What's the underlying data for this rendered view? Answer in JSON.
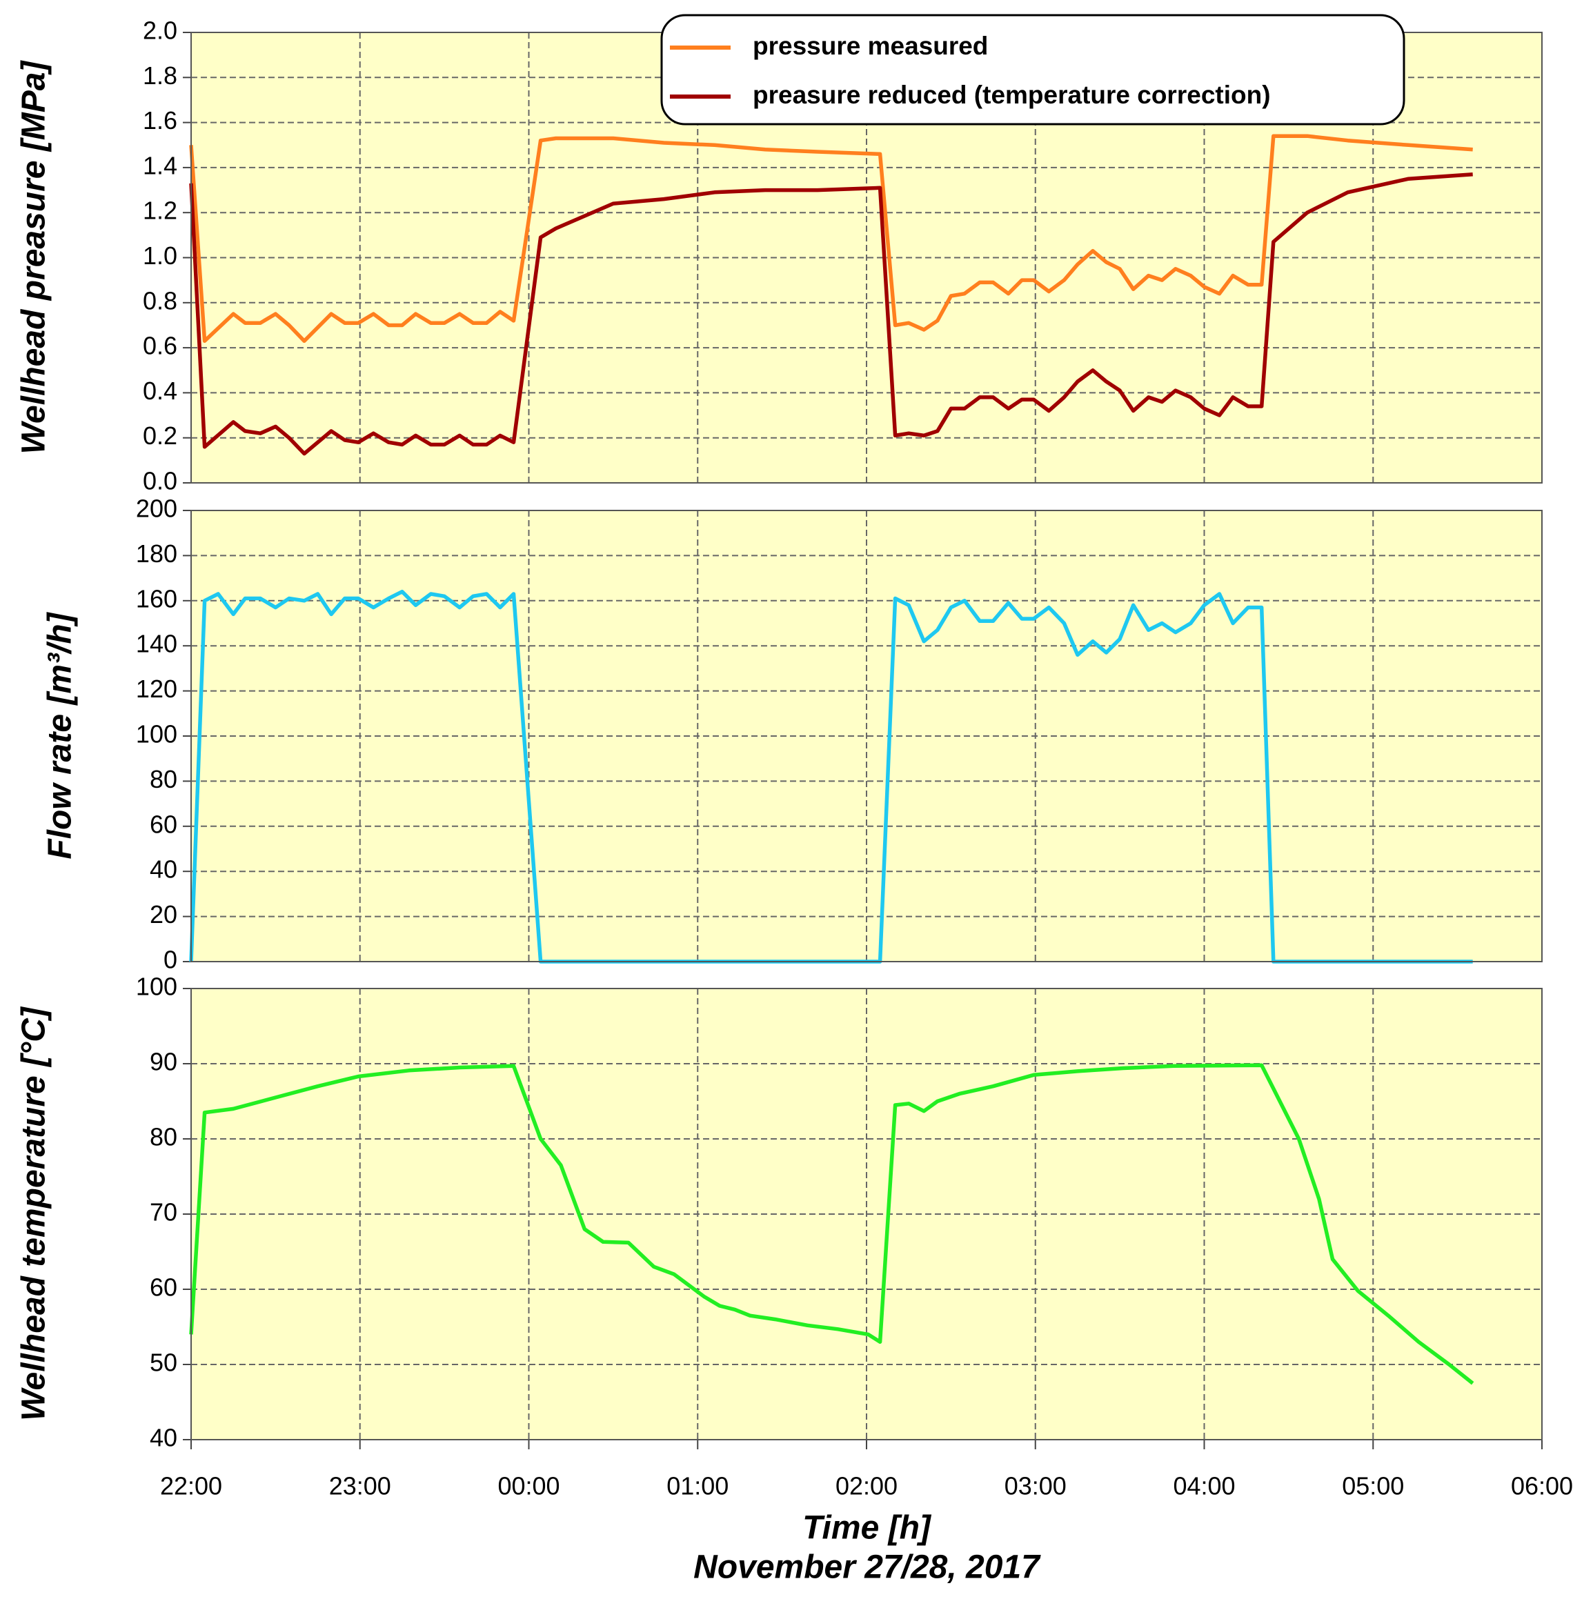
{
  "chart_data": [
    {
      "type": "line",
      "ylabel": "Wellhead preasure [MPa]",
      "legend": "top-right",
      "grid": true,
      "xlim": [
        22,
        30
      ],
      "ylim": [
        0,
        2
      ],
      "yticks": [
        {
          "value": 0,
          "label": "0.0"
        },
        0.2,
        0.4,
        0.6,
        0.8,
        {
          "value": 1,
          "label": "1.0"
        },
        1.2,
        1.4,
        1.6,
        1.8,
        {
          "value": 2,
          "label": "2.0"
        }
      ],
      "x": [
        22.0,
        22.08,
        22.25,
        22.32,
        22.41,
        22.5,
        22.58,
        22.67,
        22.83,
        22.91,
        22.99,
        23.08,
        23.17,
        23.25,
        23.33,
        23.42,
        23.5,
        23.59,
        23.67,
        23.75,
        23.83,
        23.91,
        24.07,
        24.16,
        24.5,
        24.8,
        25.1,
        25.4,
        25.71,
        26.08,
        26.17,
        26.25,
        26.34,
        26.42,
        26.5,
        26.58,
        26.67,
        26.75,
        26.84,
        26.92,
        26.99,
        27.08,
        27.17,
        27.25,
        27.34,
        27.42,
        27.5,
        27.58,
        27.67,
        27.75,
        27.83,
        27.92,
        28.0,
        28.09,
        28.17,
        28.26,
        28.34,
        28.41,
        28.61,
        28.85,
        29.21,
        29.59
      ],
      "series": [
        {
          "name": "pressure measured",
          "color": "#ff7f1e",
          "values": [
            1.5,
            0.63,
            0.75,
            0.71,
            0.71,
            0.75,
            0.7,
            0.63,
            0.75,
            0.71,
            0.71,
            0.75,
            0.7,
            0.7,
            0.75,
            0.71,
            0.71,
            0.75,
            0.71,
            0.71,
            0.76,
            0.72,
            1.52,
            1.53,
            1.53,
            1.51,
            1.5,
            1.48,
            1.47,
            1.46,
            0.7,
            0.71,
            0.68,
            0.72,
            0.83,
            0.84,
            0.89,
            0.89,
            0.84,
            0.9,
            0.9,
            0.85,
            0.9,
            0.97,
            1.03,
            0.98,
            0.95,
            0.86,
            0.92,
            0.9,
            0.95,
            0.92,
            0.87,
            0.84,
            0.92,
            0.88,
            0.88,
            1.54,
            1.54,
            1.52,
            1.5,
            1.48
          ]
        },
        {
          "name": "preasure reduced (temperature correction)",
          "color": "#a00000",
          "values": [
            1.33,
            0.16,
            0.27,
            0.23,
            0.22,
            0.25,
            0.2,
            0.13,
            0.23,
            0.19,
            0.18,
            0.22,
            0.18,
            0.17,
            0.21,
            0.17,
            0.17,
            0.21,
            0.17,
            0.17,
            0.21,
            0.18,
            1.09,
            1.13,
            1.24,
            1.26,
            1.29,
            1.3,
            1.3,
            1.31,
            0.21,
            0.22,
            0.21,
            0.23,
            0.33,
            0.33,
            0.38,
            0.38,
            0.33,
            0.37,
            0.37,
            0.32,
            0.38,
            0.45,
            0.5,
            0.45,
            0.41,
            0.32,
            0.38,
            0.36,
            0.41,
            0.38,
            0.33,
            0.3,
            0.38,
            0.34,
            0.34,
            1.07,
            1.2,
            1.29,
            1.35,
            1.37
          ]
        }
      ]
    },
    {
      "type": "line",
      "ylabel": "Flow rate [m³/h]",
      "grid": true,
      "xlim": [
        22,
        30
      ],
      "ylim": [
        0,
        200
      ],
      "yticks": [
        0,
        20,
        40,
        60,
        80,
        100,
        120,
        140,
        160,
        180,
        200
      ],
      "x": [
        22.0,
        22.08,
        22.16,
        22.25,
        22.32,
        22.41,
        22.5,
        22.58,
        22.67,
        22.75,
        22.83,
        22.91,
        22.99,
        23.08,
        23.17,
        23.25,
        23.33,
        23.42,
        23.5,
        23.59,
        23.67,
        23.75,
        23.83,
        23.91,
        24.07,
        26.08,
        26.17,
        26.25,
        26.34,
        26.42,
        26.5,
        26.58,
        26.67,
        26.75,
        26.84,
        26.92,
        26.99,
        27.08,
        27.17,
        27.25,
        27.34,
        27.42,
        27.5,
        27.58,
        27.67,
        27.75,
        27.83,
        27.92,
        28.0,
        28.09,
        28.17,
        28.26,
        28.34,
        28.41,
        29.59
      ],
      "series": [
        {
          "name": "flow rate",
          "color": "#1ec8f0",
          "values": [
            0,
            160,
            163,
            154,
            161,
            161,
            157,
            161,
            160,
            163,
            154,
            161,
            161,
            157,
            161,
            164,
            158,
            163,
            162,
            157,
            162,
            163,
            157,
            163,
            0,
            0,
            161,
            158,
            142,
            147,
            157,
            160,
            151,
            151,
            159,
            152,
            152,
            157,
            150,
            136,
            142,
            137,
            143,
            158,
            147,
            150,
            146,
            150,
            158,
            163,
            150,
            157,
            157,
            0,
            0
          ]
        }
      ]
    },
    {
      "type": "line",
      "ylabel": "Wellhead temperature [°C]",
      "xlabel": "Time [h]",
      "date": "November 27/28, 2017",
      "grid": true,
      "xlim": [
        22,
        30
      ],
      "ylim": [
        40,
        100
      ],
      "xticks": [
        {
          "value": 22,
          "label": "22:00"
        },
        {
          "value": 23,
          "label": "23:00"
        },
        {
          "value": 24,
          "label": "00:00"
        },
        {
          "value": 25,
          "label": "01:00"
        },
        {
          "value": 26,
          "label": "02:00"
        },
        {
          "value": 27,
          "label": "03:00"
        },
        {
          "value": 28,
          "label": "04:00"
        },
        {
          "value": 29,
          "label": "05:00"
        },
        {
          "value": 30,
          "label": "06:00"
        }
      ],
      "yticks": [
        40,
        50,
        60,
        70,
        80,
        90,
        100
      ],
      "x": [
        22.0,
        22.08,
        22.25,
        22.5,
        22.75,
        22.99,
        23.29,
        23.59,
        23.91,
        24.07,
        24.19,
        24.33,
        24.44,
        24.59,
        24.74,
        24.86,
        25.04,
        25.13,
        25.22,
        25.31,
        25.46,
        25.65,
        25.83,
        26.01,
        26.08,
        26.17,
        26.25,
        26.34,
        26.42,
        26.55,
        26.75,
        26.99,
        27.25,
        27.52,
        27.82,
        28.34,
        28.56,
        28.68,
        28.76,
        28.91,
        29.09,
        29.27,
        29.45,
        29.59
      ],
      "series": [
        {
          "name": "wellhead temperature",
          "color": "#22ee22",
          "values": [
            54,
            83.5,
            84,
            85.5,
            87,
            88.3,
            89.1,
            89.5,
            89.7,
            80,
            76.5,
            68,
            66.3,
            66.2,
            63,
            62,
            59,
            57.8,
            57.3,
            56.5,
            56,
            55.2,
            54.7,
            54.0,
            53,
            84.5,
            84.7,
            83.7,
            85,
            86,
            87,
            88.5,
            89,
            89.4,
            89.7,
            89.8,
            80,
            72,
            64,
            59.8,
            56.5,
            53,
            50,
            47.5
          ]
        }
      ]
    }
  ]
}
